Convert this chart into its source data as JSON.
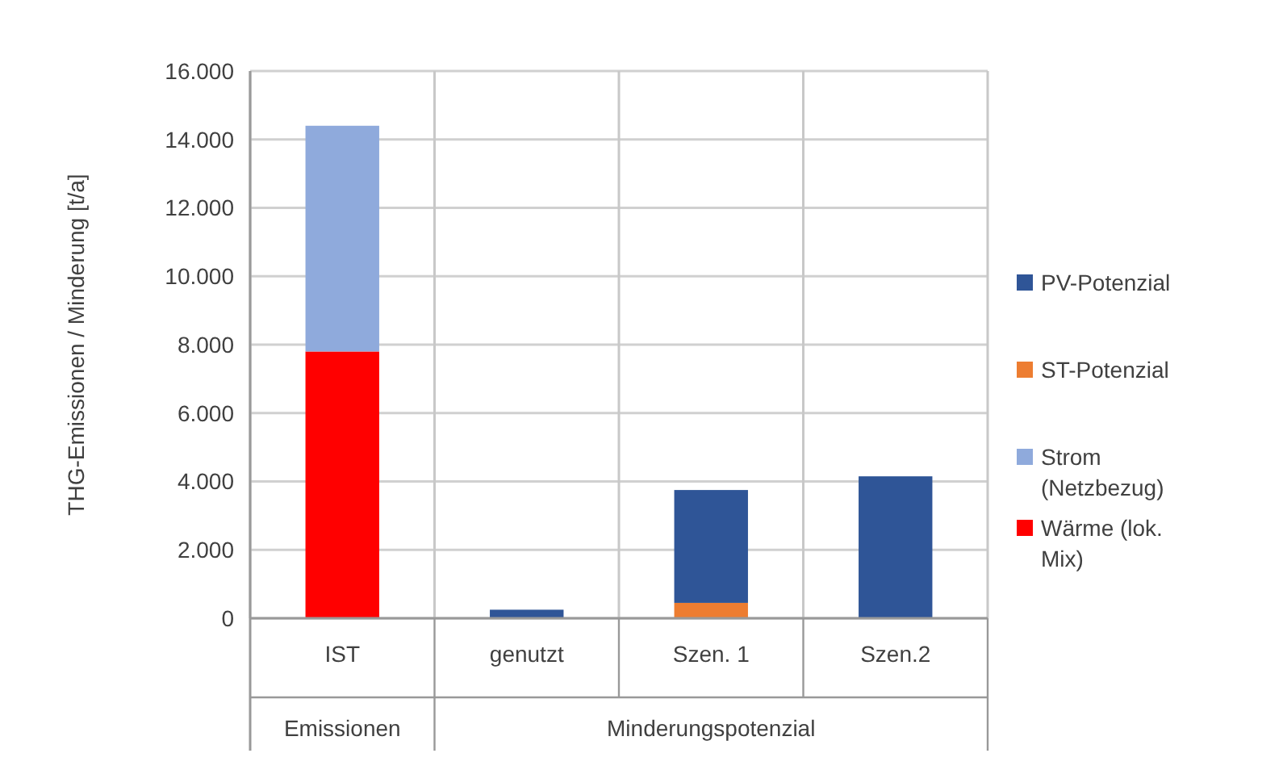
{
  "chart_data": {
    "type": "bar",
    "ylabel": "THG-Emissionen / Minderung [t/a]",
    "categories": [
      "IST",
      "genutzt",
      "Szen. 1",
      "Szen.2"
    ],
    "stacked": true,
    "series": [
      {
        "name": "Wärme (lok. Mix)",
        "color": "#ff0000",
        "values": [
          7800,
          0,
          0,
          0
        ]
      },
      {
        "name": "Strom (Netzbezug)",
        "color": "#8faadc",
        "values": [
          6600,
          0,
          0,
          0
        ]
      },
      {
        "name": "ST-Potenzial",
        "color": "#ed7d31",
        "values": [
          0,
          0,
          450,
          0
        ]
      },
      {
        "name": "PV-Potenzial",
        "color": "#2f5597",
        "values": [
          0,
          250,
          3300,
          4150
        ]
      }
    ],
    "ylim": [
      0,
      16000
    ],
    "yticks": [
      0,
      {
        "value": 2000,
        "label": "2.000"
      },
      {
        "value": 4000,
        "label": "4.000"
      },
      {
        "value": 6000,
        "label": "6.000"
      },
      {
        "value": 8000,
        "label": "8.000"
      },
      {
        "value": 10000,
        "label": "10.000"
      },
      {
        "value": 12000,
        "label": "12.000"
      },
      {
        "value": 14000,
        "label": "14.000"
      },
      {
        "value": 16000,
        "label": "16.000"
      }
    ],
    "grid": true,
    "legend": "right",
    "annotations": [
      "Emissionen",
      "Minderungspotenzial"
    ]
  }
}
